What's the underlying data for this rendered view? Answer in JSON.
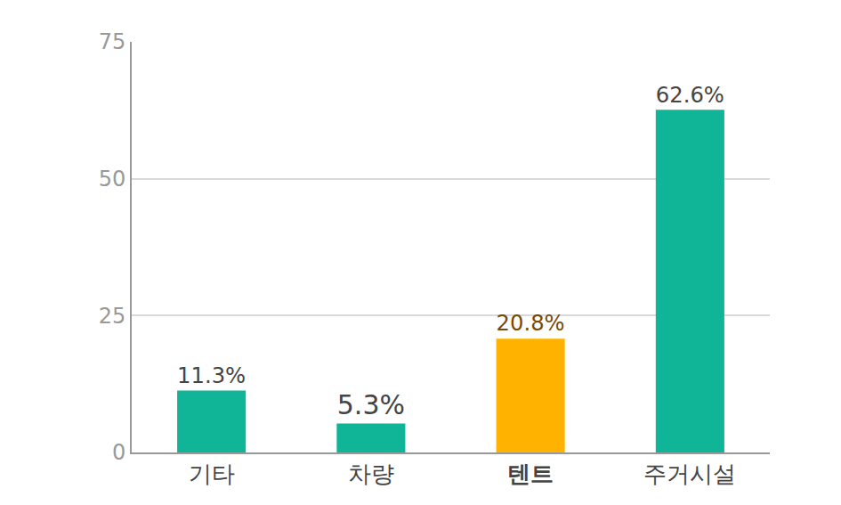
{
  "chart_data": {
    "type": "bar",
    "categories": [
      "기타",
      "차량",
      "텐트",
      "주거시설"
    ],
    "values": [
      11.3,
      5.3,
      20.8,
      62.6
    ],
    "value_labels": [
      "11.3%",
      "5.3%",
      "20.8%",
      "62.6%"
    ],
    "colors": [
      "#0fb596",
      "#0fb596",
      "#ffb300",
      "#0fb596"
    ],
    "data_labels": true,
    "ylim": [
      0,
      75
    ],
    "yticks": [
      0,
      25,
      50,
      75
    ],
    "grid": true
  }
}
